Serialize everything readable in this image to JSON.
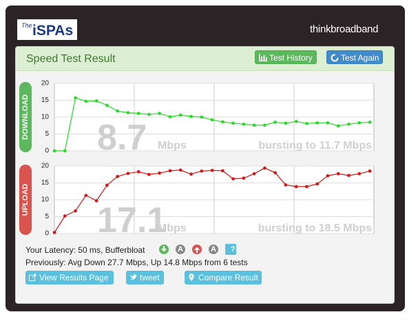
{
  "header": {
    "logo": [
      "The",
      "iSPAs"
    ],
    "brand": "thinkbroadband"
  },
  "panel": {
    "title": "Speed Test Result",
    "buttons": [
      "Test History",
      "Test Again"
    ]
  },
  "chart_data": [
    {
      "type": "line",
      "label": "DOWNLOAD",
      "color": "#22dd22",
      "values": [
        0,
        0,
        15.7,
        14.7,
        14.8,
        13.5,
        11.8,
        11.3,
        11.1,
        10.8,
        11.1,
        10.1,
        10.6,
        10.2,
        10.0,
        9.2,
        8.6,
        8.2,
        7.9,
        7.6,
        7.6,
        8.5,
        8.2,
        8.7,
        8.1,
        8.3,
        8.3,
        7.4,
        7.9,
        8.3,
        8.5
      ],
      "ylim": [
        0,
        20
      ],
      "yticks": [
        0,
        5,
        10,
        15,
        20
      ],
      "grid": true,
      "speed": 8.7,
      "unit": "Mbps",
      "burst": "bursting to 11.7 Mbps"
    },
    {
      "type": "line",
      "label": "UPLOAD",
      "color": "#dd1111",
      "values": [
        0.3,
        5.2,
        6.7,
        11.3,
        9.7,
        14.3,
        16.9,
        17.8,
        18.3,
        17.5,
        17.9,
        18.6,
        18.8,
        17.6,
        18.5,
        18.7,
        18.6,
        16.2,
        16.4,
        17.7,
        19.4,
        18.0,
        14.4,
        13.9,
        13.9,
        14.7,
        17.1,
        17.7,
        17.2,
        17.7,
        18.5
      ],
      "ylim": [
        0,
        20
      ],
      "yticks": [
        0,
        5,
        10,
        15,
        20
      ],
      "grid": true,
      "speed": 17.1,
      "unit": "Mbps",
      "burst": "bursting to 18.5 Mbps"
    }
  ],
  "footer": {
    "latency": "Your Latency: 50 ms, Bufferbloat",
    "badges": [
      "A",
      "A",
      "?"
    ],
    "previously": "Previously: Avg Down 27.7 Mbps, Up 14.8 Mbps from 6 tests",
    "buttons": [
      "View Results Page",
      "tweet",
      "Compare Result"
    ]
  }
}
